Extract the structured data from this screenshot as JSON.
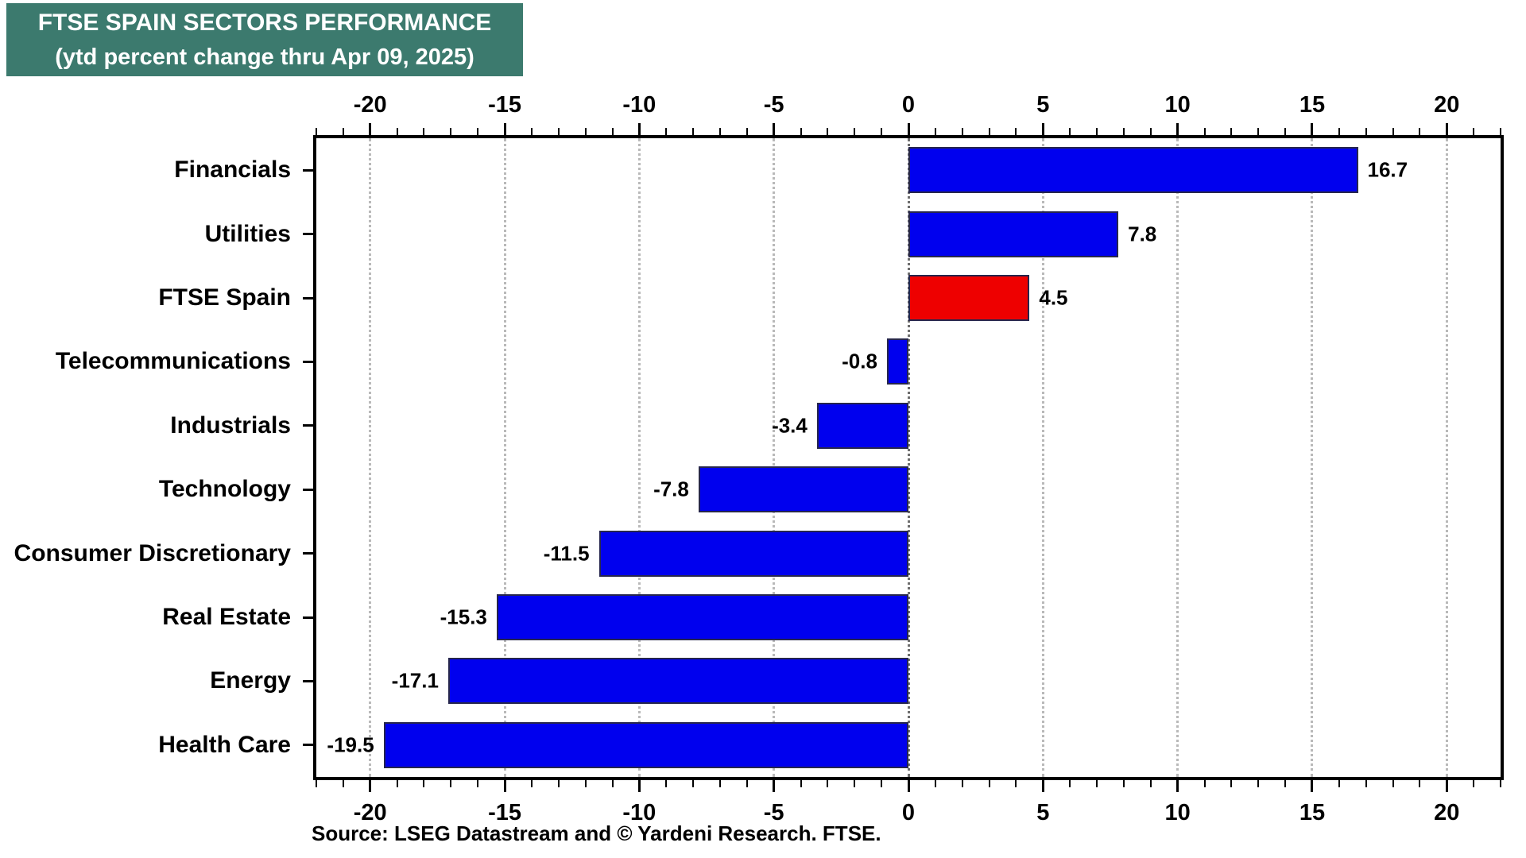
{
  "title": {
    "line1": "FTSE SPAIN SECTORS PERFORMANCE",
    "line2": "(ytd percent change thru Apr 09, 2025)"
  },
  "source": "Source: LSEG Datastream and © Yardeni Research. FTSE.",
  "colors": {
    "title_bg": "#3C7A6E",
    "title_text": "#FFFFFF",
    "bar_blue": "#0000EE",
    "bar_red": "#EE0000",
    "bar_edge": "#26264d",
    "grid": "#b9b9b9",
    "zero_grid": "#6e6e6e",
    "axis": "#000000"
  },
  "chart_data": {
    "type": "bar",
    "orientation": "horizontal",
    "title": "FTSE SPAIN SECTORS PERFORMANCE (ytd percent change thru Apr 09, 2025)",
    "categories": [
      "Financials",
      "Utilities",
      "FTSE Spain",
      "Telecommunications",
      "Industrials",
      "Technology",
      "Consumer Discretionary",
      "Real Estate",
      "Energy",
      "Health Care"
    ],
    "values": [
      16.7,
      7.8,
      4.5,
      -0.8,
      -3.4,
      -7.8,
      -11.5,
      -15.3,
      -17.1,
      -19.5
    ],
    "value_labels": [
      "16.7",
      "7.8",
      "4.5",
      "-0.8",
      "-3.4",
      "-7.8",
      "-11.5",
      "-15.3",
      "-17.1",
      "-19.5"
    ],
    "bar_colors": [
      "#0000EE",
      "#0000EE",
      "#EE0000",
      "#0000EE",
      "#0000EE",
      "#0000EE",
      "#0000EE",
      "#0000EE",
      "#0000EE",
      "#0000EE"
    ],
    "highlighted_category": "FTSE Spain",
    "xlim": [
      -22,
      22
    ],
    "major_ticks": [
      -20,
      -15,
      -10,
      -5,
      0,
      5,
      10,
      15,
      20
    ],
    "tick_labels": [
      "-20",
      "-15",
      "-10",
      "-5",
      "0",
      "5",
      "10",
      "15",
      "20"
    ],
    "minor_tick_step": 1,
    "grid": "vertical dotted at major ticks, top and bottom mirrored axes",
    "legend": "none",
    "xlabel": "",
    "ylabel": ""
  }
}
